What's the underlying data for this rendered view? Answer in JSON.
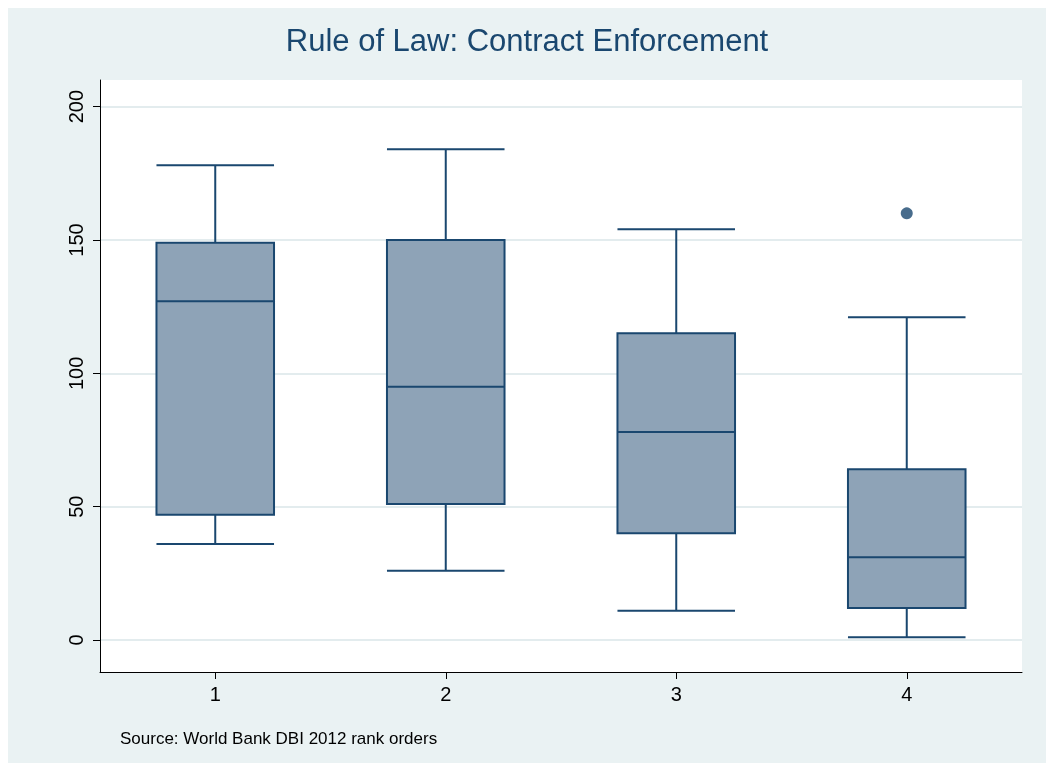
{
  "chart_data": {
    "type": "box",
    "title": "Rule of Law: Contract Enforcement",
    "categories": [
      "1",
      "2",
      "3",
      "4"
    ],
    "series": [
      {
        "color": "#8ea3b7",
        "boxes": [
          {
            "low": 36,
            "q1": 47,
            "median": 127,
            "q3": 149,
            "high": 178
          },
          {
            "low": 26,
            "q1": 51,
            "median": 95,
            "q3": 150,
            "high": 184
          },
          {
            "low": 11,
            "q1": 40,
            "median": 78,
            "q3": 115,
            "high": 154
          },
          {
            "low": 1,
            "q1": 12,
            "median": 31,
            "q3": 64,
            "high": 121
          }
        ]
      },
      {
        "type": "scatter",
        "color": "#1a476f",
        "x": [
          "4"
        ],
        "values": [
          160
        ]
      }
    ],
    "ylim": [
      -12,
      210
    ],
    "yticks": [
      0,
      50,
      100,
      150,
      200
    ],
    "grid": "y",
    "annotations": [
      "Source: World Bank DBI 2012 rank orders"
    ]
  }
}
